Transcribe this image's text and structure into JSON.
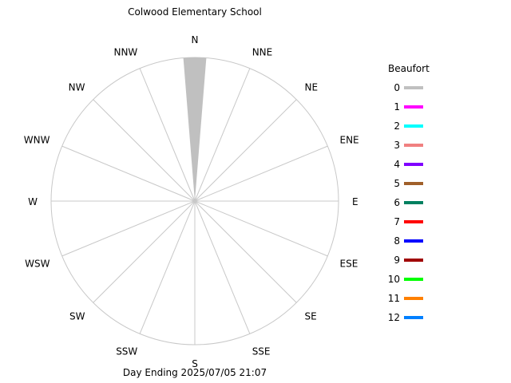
{
  "chart_data": {
    "type": "wind-rose",
    "title": "Colwood Elementary School",
    "footer": "Day Ending 2025/07/05 21:07",
    "directions": [
      "N",
      "NNE",
      "NE",
      "ENE",
      "E",
      "ESE",
      "SE",
      "SSE",
      "S",
      "SSW",
      "SW",
      "WSW",
      "W",
      "WNW",
      "NW",
      "NNW"
    ],
    "legend": {
      "title": "Beaufort",
      "items": [
        {
          "label": "0",
          "color": "#c0c0c0"
        },
        {
          "label": "1",
          "color": "#ff00ff"
        },
        {
          "label": "2",
          "color": "#00ffff"
        },
        {
          "label": "3",
          "color": "#f08080"
        },
        {
          "label": "4",
          "color": "#8000ff"
        },
        {
          "label": "5",
          "color": "#a0602a"
        },
        {
          "label": "6",
          "color": "#008060"
        },
        {
          "label": "7",
          "color": "#ff0000"
        },
        {
          "label": "8",
          "color": "#0000ff"
        },
        {
          "label": "9",
          "color": "#a00000"
        },
        {
          "label": "10",
          "color": "#00ff00"
        },
        {
          "label": "11",
          "color": "#ff8000"
        },
        {
          "label": "12",
          "color": "#0080ff"
        }
      ]
    },
    "series": [
      {
        "direction": "N",
        "beaufort": "0",
        "value": 100
      }
    ],
    "max_value": 100
  }
}
